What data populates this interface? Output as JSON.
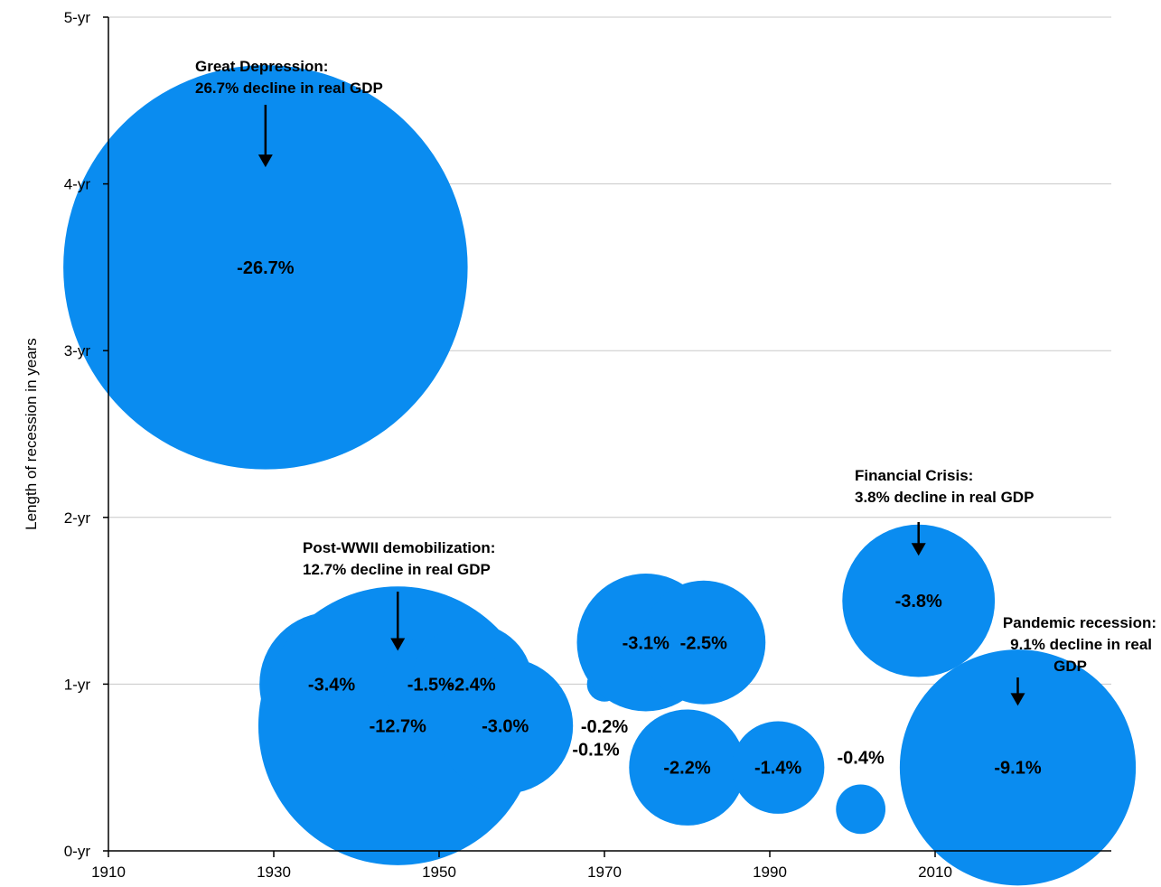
{
  "chart_data": {
    "type": "bubble",
    "title": "",
    "xlabel": "",
    "ylabel": "Length of recession in years",
    "xlim": [
      1910,
      2028
    ],
    "ylim": [
      0,
      5
    ],
    "x_ticks": [
      1910,
      1930,
      1950,
      1970,
      1990,
      2010
    ],
    "x_tick_labels": [
      "1910",
      "1930",
      "1950",
      "1970",
      "1990",
      "2010"
    ],
    "y_ticks": [
      0,
      1,
      2,
      3,
      4,
      5
    ],
    "y_tick_labels": [
      "0-yr",
      "1-yr",
      "2-yr",
      "3-yr",
      "4-yr",
      "5-yr"
    ],
    "grid": "horizontal",
    "bubble_color": "#0A8CF0",
    "size_variable": "decline in real GDP (%)",
    "points": [
      {
        "x": 1929,
        "y": 3.5,
        "decline": 26.7,
        "label": "-26.7%",
        "label_pos": "center"
      },
      {
        "x": 1937,
        "y": 1.0,
        "decline": 3.4,
        "label": "-3.4%",
        "label_pos": "center"
      },
      {
        "x": 1945,
        "y": 0.75,
        "decline": 12.7,
        "label": "-12.7%",
        "label_pos": "center"
      },
      {
        "x": 1949,
        "y": 1.0,
        "decline": 1.5,
        "label": "-1.5%",
        "label_pos": "center"
      },
      {
        "x": 1954,
        "y": 1.0,
        "decline": 2.4,
        "label": "-2.4%",
        "label_pos": "center"
      },
      {
        "x": 1958,
        "y": 0.75,
        "decline": 3.0,
        "label": "-3.0%",
        "label_pos": "center"
      },
      {
        "x": 1960,
        "y": 0.83,
        "decline": 0.1,
        "label": "-0.1%",
        "label_pos": "below"
      },
      {
        "x": 1970,
        "y": 1.0,
        "decline": 0.2,
        "label": "-0.2%",
        "label_pos": "below"
      },
      {
        "x": 1975,
        "y": 1.25,
        "decline": 3.1,
        "label": "-3.1%",
        "label_pos": "center"
      },
      {
        "x": 1980,
        "y": 0.5,
        "decline": 2.2,
        "label": "-2.2%",
        "label_pos": "center"
      },
      {
        "x": 1982,
        "y": 1.25,
        "decline": 2.5,
        "label": "-2.5%",
        "label_pos": "center"
      },
      {
        "x": 1991,
        "y": 0.5,
        "decline": 1.4,
        "label": "-1.4%",
        "label_pos": "center"
      },
      {
        "x": 2001,
        "y": 0.25,
        "decline": 0.4,
        "label": "-0.4%",
        "label_pos": "above"
      },
      {
        "x": 2008,
        "y": 1.5,
        "decline": 3.8,
        "label": "-3.8%",
        "label_pos": "center"
      },
      {
        "x": 2020,
        "y": 0.5,
        "decline": 9.1,
        "label": "-9.1%",
        "label_pos": "center"
      }
    ],
    "annotations": [
      {
        "lines": [
          "Great Depression:",
          "26.7% decline in real GDP"
        ],
        "target_x": 1929,
        "target_y": 4.1
      },
      {
        "lines": [
          "Post-WWII demobilization:",
          "12.7% decline in real GDP"
        ],
        "target_x": 1945,
        "target_y": 1.2
      },
      {
        "lines": [
          "Financial Crisis:",
          "3.8% decline in real GDP"
        ],
        "target_x": 2008,
        "target_y": 1.77
      },
      {
        "lines": [
          "Pandemic recession:",
          "9.1% decline in real",
          "GDP"
        ],
        "target_x": 2020,
        "target_y": 0.87
      }
    ]
  }
}
